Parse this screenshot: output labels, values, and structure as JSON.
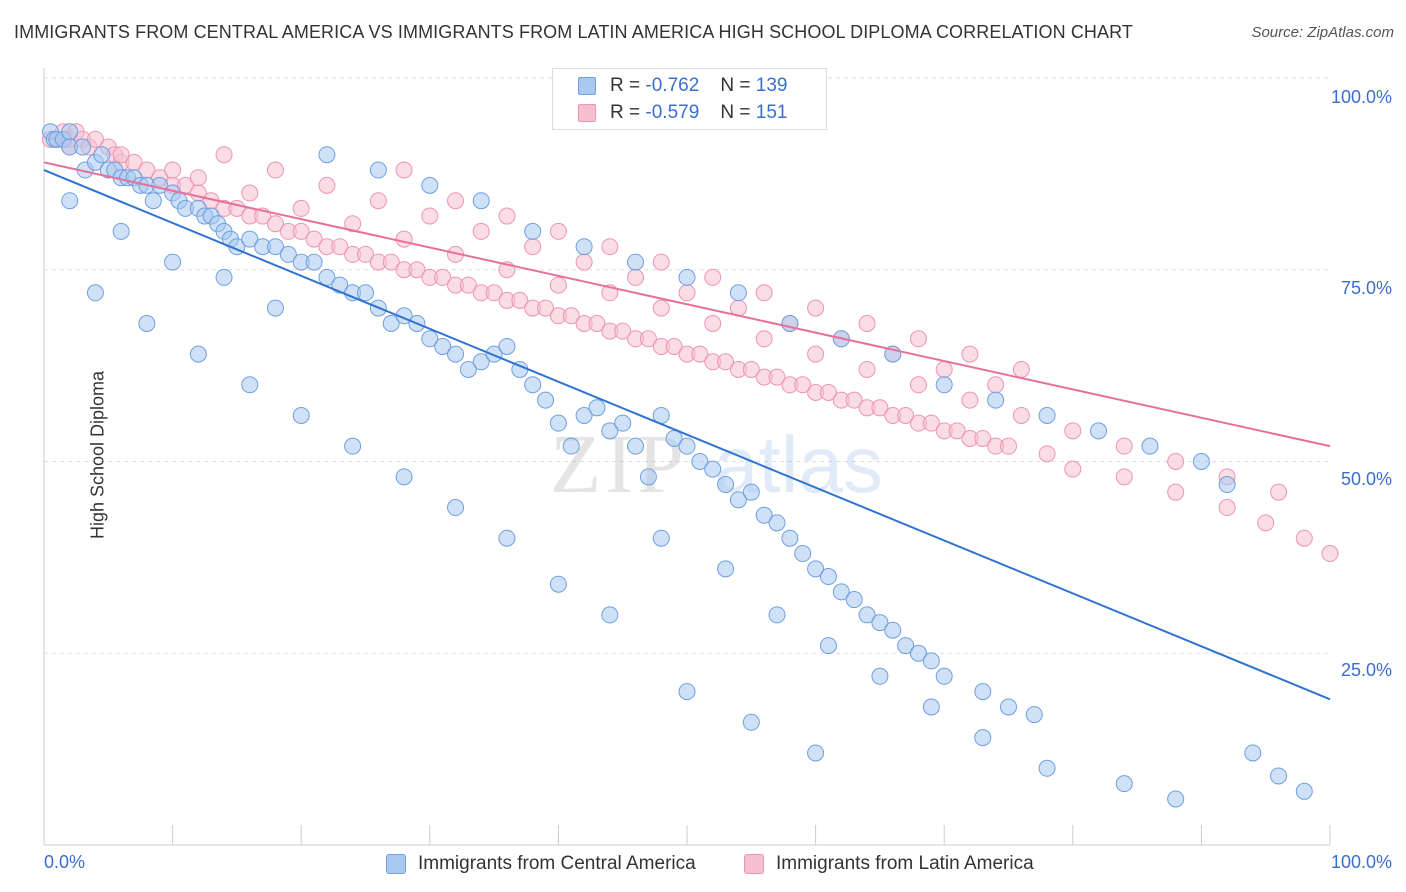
{
  "header": {
    "title": "IMMIGRANTS FROM CENTRAL AMERICA VS IMMIGRANTS FROM LATIN AMERICA HIGH SCHOOL DIPLOMA CORRELATION CHART",
    "source": "Source: ZipAtlas.com"
  },
  "colors": {
    "blue_fill": "#a8c8f0",
    "blue_stroke": "#6f9fe0",
    "blue_line": "#2f74d0",
    "pink_fill": "#f6bfd0",
    "pink_stroke": "#ee94b3",
    "pink_line": "#e8709a",
    "purple_fill": "#b79ccc",
    "accent_text": "#3a6fd0"
  },
  "legend": {
    "rows": [
      {
        "r_label": "R =",
        "r_value": "-0.762",
        "n_label": "N =",
        "n_value": "139",
        "color": "blue"
      },
      {
        "r_label": "R =",
        "r_value": "-0.579",
        "n_label": "N =",
        "n_value": "151",
        "color": "pink"
      }
    ]
  },
  "bottom_legend": {
    "items": [
      {
        "label": "Immigrants from Central America",
        "color": "blue"
      },
      {
        "label": "Immigrants from Latin America",
        "color": "pink"
      }
    ]
  },
  "watermark": {
    "zip": "ZIP",
    "atlas": "atlas"
  },
  "chart_data": {
    "type": "scatter",
    "title": "IMMIGRANTS FROM CENTRAL AMERICA VS IMMIGRANTS FROM LATIN AMERICA HIGH SCHOOL DIPLOMA CORRELATION CHART",
    "xlabel": "",
    "ylabel": "High School Diploma",
    "xlim": [
      0,
      100
    ],
    "ylim": [
      0,
      100
    ],
    "x_tick_labels": [
      {
        "value": 0,
        "label": "0.0%"
      },
      {
        "value": 100,
        "label": "100.0%"
      }
    ],
    "y_tick_labels": [
      {
        "value": 25,
        "label": "25.0%"
      },
      {
        "value": 50,
        "label": "50.0%"
      },
      {
        "value": 75,
        "label": "75.0%"
      },
      {
        "value": 100,
        "label": "100.0%"
      }
    ],
    "grid": true,
    "legend_position": "top-center",
    "series": [
      {
        "name": "Immigrants from Central America",
        "color": "blue",
        "trend": {
          "x": [
            0,
            100
          ],
          "y": [
            88,
            19
          ]
        },
        "points": [
          [
            0.5,
            93
          ],
          [
            0.8,
            92
          ],
          [
            1,
            92
          ],
          [
            1.5,
            92
          ],
          [
            2,
            93
          ],
          [
            2,
            91
          ],
          [
            3,
            91
          ],
          [
            3.2,
            88
          ],
          [
            4,
            89
          ],
          [
            4.5,
            90
          ],
          [
            5,
            88
          ],
          [
            5.5,
            88
          ],
          [
            6,
            87
          ],
          [
            6.5,
            87
          ],
          [
            7,
            87
          ],
          [
            7.5,
            86
          ],
          [
            8,
            86
          ],
          [
            8.5,
            84
          ],
          [
            9,
            86
          ],
          [
            10,
            85
          ],
          [
            10.5,
            84
          ],
          [
            11,
            83
          ],
          [
            12,
            83
          ],
          [
            12.5,
            82
          ],
          [
            13,
            82
          ],
          [
            13.5,
            81
          ],
          [
            14,
            80
          ],
          [
            14.5,
            79
          ],
          [
            15,
            78
          ],
          [
            16,
            79
          ],
          [
            17,
            78
          ],
          [
            18,
            78
          ],
          [
            19,
            77
          ],
          [
            20,
            76
          ],
          [
            21,
            76
          ],
          [
            22,
            74
          ],
          [
            23,
            73
          ],
          [
            24,
            72
          ],
          [
            25,
            72
          ],
          [
            26,
            70
          ],
          [
            27,
            68
          ],
          [
            28,
            69
          ],
          [
            29,
            68
          ],
          [
            30,
            66
          ],
          [
            31,
            65
          ],
          [
            32,
            64
          ],
          [
            33,
            62
          ],
          [
            34,
            63
          ],
          [
            35,
            64
          ],
          [
            36,
            65
          ],
          [
            37,
            62
          ],
          [
            38,
            60
          ],
          [
            39,
            58
          ],
          [
            40,
            55
          ],
          [
            41,
            52
          ],
          [
            42,
            56
          ],
          [
            43,
            57
          ],
          [
            44,
            54
          ],
          [
            45,
            55
          ],
          [
            46,
            52
          ],
          [
            47,
            48
          ],
          [
            48,
            56
          ],
          [
            49,
            53
          ],
          [
            50,
            52
          ],
          [
            51,
            50
          ],
          [
            52,
            49
          ],
          [
            53,
            47
          ],
          [
            54,
            45
          ],
          [
            55,
            46
          ],
          [
            56,
            43
          ],
          [
            57,
            42
          ],
          [
            58,
            40
          ],
          [
            59,
            38
          ],
          [
            60,
            36
          ],
          [
            61,
            35
          ],
          [
            62,
            33
          ],
          [
            63,
            32
          ],
          [
            64,
            30
          ],
          [
            65,
            29
          ],
          [
            66,
            28
          ],
          [
            67,
            26
          ],
          [
            68,
            25
          ],
          [
            69,
            24
          ],
          [
            70,
            22
          ],
          [
            73,
            20
          ],
          [
            75,
            18
          ],
          [
            77,
            17
          ],
          [
            22,
            90
          ],
          [
            26,
            88
          ],
          [
            30,
            86
          ],
          [
            34,
            84
          ],
          [
            38,
            80
          ],
          [
            42,
            78
          ],
          [
            46,
            76
          ],
          [
            50,
            74
          ],
          [
            54,
            72
          ],
          [
            58,
            68
          ],
          [
            62,
            66
          ],
          [
            66,
            64
          ],
          [
            70,
            60
          ],
          [
            74,
            58
          ],
          [
            78,
            56
          ],
          [
            82,
            54
          ],
          [
            86,
            52
          ],
          [
            90,
            50
          ],
          [
            92,
            47
          ],
          [
            48,
            40
          ],
          [
            53,
            36
          ],
          [
            57,
            30
          ],
          [
            61,
            26
          ],
          [
            65,
            22
          ],
          [
            69,
            18
          ],
          [
            73,
            14
          ],
          [
            78,
            10
          ],
          [
            84,
            8
          ],
          [
            88,
            6
          ],
          [
            44,
            30
          ],
          [
            40,
            34
          ],
          [
            36,
            40
          ],
          [
            32,
            44
          ],
          [
            28,
            48
          ],
          [
            24,
            52
          ],
          [
            20,
            56
          ],
          [
            16,
            60
          ],
          [
            12,
            64
          ],
          [
            8,
            68
          ],
          [
            4,
            72
          ],
          [
            94,
            12
          ],
          [
            96,
            9
          ],
          [
            98,
            7
          ],
          [
            14,
            74
          ],
          [
            18,
            70
          ],
          [
            10,
            76
          ],
          [
            6,
            80
          ],
          [
            2,
            84
          ],
          [
            50,
            20
          ],
          [
            55,
            16
          ],
          [
            60,
            12
          ]
        ]
      },
      {
        "name": "Immigrants from Latin America",
        "color": "pink",
        "trend": {
          "x": [
            0,
            100
          ],
          "y": [
            89,
            52
          ]
        },
        "points": [
          [
            0.5,
            92
          ],
          [
            1,
            92
          ],
          [
            1.5,
            93
          ],
          [
            2,
            92
          ],
          [
            2.5,
            93
          ],
          [
            3,
            92
          ],
          [
            3.5,
            91
          ],
          [
            4,
            92
          ],
          [
            5,
            91
          ],
          [
            5.5,
            90
          ],
          [
            6,
            89
          ],
          [
            7,
            89
          ],
          [
            8,
            88
          ],
          [
            9,
            87
          ],
          [
            10,
            86
          ],
          [
            11,
            86
          ],
          [
            12,
            85
          ],
          [
            13,
            84
          ],
          [
            14,
            83
          ],
          [
            15,
            83
          ],
          [
            16,
            82
          ],
          [
            17,
            82
          ],
          [
            18,
            81
          ],
          [
            19,
            80
          ],
          [
            20,
            80
          ],
          [
            21,
            79
          ],
          [
            22,
            78
          ],
          [
            23,
            78
          ],
          [
            24,
            77
          ],
          [
            25,
            77
          ],
          [
            26,
            76
          ],
          [
            27,
            76
          ],
          [
            28,
            75
          ],
          [
            29,
            75
          ],
          [
            30,
            74
          ],
          [
            31,
            74
          ],
          [
            32,
            73
          ],
          [
            33,
            73
          ],
          [
            34,
            72
          ],
          [
            35,
            72
          ],
          [
            36,
            71
          ],
          [
            37,
            71
          ],
          [
            38,
            70
          ],
          [
            39,
            70
          ],
          [
            40,
            69
          ],
          [
            41,
            69
          ],
          [
            42,
            68
          ],
          [
            43,
            68
          ],
          [
            44,
            67
          ],
          [
            45,
            67
          ],
          [
            46,
            66
          ],
          [
            47,
            66
          ],
          [
            48,
            65
          ],
          [
            49,
            65
          ],
          [
            50,
            64
          ],
          [
            51,
            64
          ],
          [
            52,
            63
          ],
          [
            53,
            63
          ],
          [
            54,
            62
          ],
          [
            55,
            62
          ],
          [
            56,
            61
          ],
          [
            57,
            61
          ],
          [
            58,
            60
          ],
          [
            59,
            60
          ],
          [
            60,
            59
          ],
          [
            61,
            59
          ],
          [
            62,
            58
          ],
          [
            63,
            58
          ],
          [
            64,
            57
          ],
          [
            65,
            57
          ],
          [
            66,
            56
          ],
          [
            67,
            56
          ],
          [
            68,
            55
          ],
          [
            69,
            55
          ],
          [
            70,
            54
          ],
          [
            71,
            54
          ],
          [
            72,
            53
          ],
          [
            73,
            53
          ],
          [
            74,
            52
          ],
          [
            75,
            52
          ],
          [
            78,
            51
          ],
          [
            80,
            49
          ],
          [
            84,
            48
          ],
          [
            88,
            46
          ],
          [
            92,
            44
          ],
          [
            95,
            42
          ],
          [
            98,
            40
          ],
          [
            100,
            38
          ],
          [
            28,
            88
          ],
          [
            32,
            84
          ],
          [
            36,
            82
          ],
          [
            40,
            80
          ],
          [
            44,
            78
          ],
          [
            48,
            76
          ],
          [
            52,
            74
          ],
          [
            56,
            72
          ],
          [
            60,
            70
          ],
          [
            64,
            68
          ],
          [
            68,
            66
          ],
          [
            72,
            64
          ],
          [
            76,
            62
          ],
          [
            14,
            90
          ],
          [
            18,
            88
          ],
          [
            22,
            86
          ],
          [
            26,
            84
          ],
          [
            30,
            82
          ],
          [
            34,
            80
          ],
          [
            38,
            78
          ],
          [
            42,
            76
          ],
          [
            46,
            74
          ],
          [
            50,
            72
          ],
          [
            54,
            70
          ],
          [
            58,
            68
          ],
          [
            62,
            66
          ],
          [
            66,
            64
          ],
          [
            70,
            62
          ],
          [
            74,
            60
          ],
          [
            10,
            88
          ],
          [
            6,
            90
          ],
          [
            2,
            91
          ],
          [
            44,
            72
          ],
          [
            48,
            70
          ],
          [
            52,
            68
          ],
          [
            56,
            66
          ],
          [
            60,
            64
          ],
          [
            64,
            62
          ],
          [
            68,
            60
          ],
          [
            72,
            58
          ],
          [
            76,
            56
          ],
          [
            80,
            54
          ],
          [
            84,
            52
          ],
          [
            88,
            50
          ],
          [
            92,
            48
          ],
          [
            96,
            46
          ],
          [
            12,
            87
          ],
          [
            16,
            85
          ],
          [
            20,
            83
          ],
          [
            24,
            81
          ],
          [
            28,
            79
          ],
          [
            32,
            77
          ],
          [
            36,
            75
          ],
          [
            40,
            73
          ]
        ]
      }
    ]
  }
}
